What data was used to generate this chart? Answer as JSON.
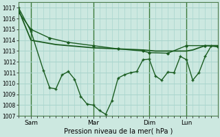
{
  "background_color": "#cce8e0",
  "grid_color": "#a8d4cc",
  "plot_bg": "#cce8e0",
  "line_color": "#1a5c20",
  "ylim": [
    1007,
    1017.5
  ],
  "yticks": [
    1007,
    1008,
    1009,
    1010,
    1011,
    1012,
    1013,
    1014,
    1015,
    1016,
    1017
  ],
  "xlabel": "Pression niveau de la mer( hPa )",
  "xtick_labels": [
    "Sam",
    "Mar",
    "Dim",
    "Lun"
  ],
  "xtick_pos": [
    2,
    12,
    21,
    27
  ],
  "xlim": [
    0,
    32
  ],
  "vlines": [
    2,
    12,
    21,
    27
  ],
  "line1_x": [
    0,
    2,
    4,
    6,
    8,
    10,
    12,
    14,
    16,
    18,
    20,
    21,
    22,
    24,
    26,
    27,
    28,
    30,
    32
  ],
  "line1_y": [
    1016.8,
    1014.0,
    1013.8,
    1013.6,
    1013.5,
    1013.4,
    1013.3,
    1013.25,
    1013.2,
    1013.15,
    1013.1,
    1013.05,
    1013.0,
    1013.0,
    1013.0,
    1013.0,
    1013.1,
    1013.5,
    1013.5
  ],
  "line2_x": [
    0,
    2,
    5,
    8,
    12,
    16,
    20,
    21,
    24,
    27,
    30,
    32
  ],
  "line2_y": [
    1016.6,
    1015.0,
    1014.2,
    1013.8,
    1013.5,
    1013.2,
    1013.0,
    1012.85,
    1012.8,
    1013.5,
    1013.5,
    1013.4
  ],
  "line3_x": [
    0,
    2,
    4,
    5,
    6,
    7,
    8,
    9,
    10,
    11,
    12,
    13,
    14,
    15,
    16,
    17,
    18,
    19,
    20,
    21,
    22,
    23,
    24,
    25,
    26,
    27,
    28,
    29,
    30,
    31,
    32
  ],
  "line3_y": [
    1017.0,
    1014.8,
    1011.2,
    1009.6,
    1009.5,
    1010.8,
    1011.1,
    1010.4,
    1008.8,
    1008.1,
    1008.0,
    1007.5,
    1007.15,
    1008.4,
    1010.5,
    1010.8,
    1011.0,
    1011.1,
    1012.2,
    1012.25,
    1010.7,
    1010.3,
    1011.05,
    1011.0,
    1012.5,
    1012.2,
    1010.3,
    1011.0,
    1012.5,
    1013.5,
    1013.4
  ],
  "ylabel_fontsize": 5.5,
  "xlabel_fontsize": 7.0,
  "xtick_fontsize": 6.5
}
